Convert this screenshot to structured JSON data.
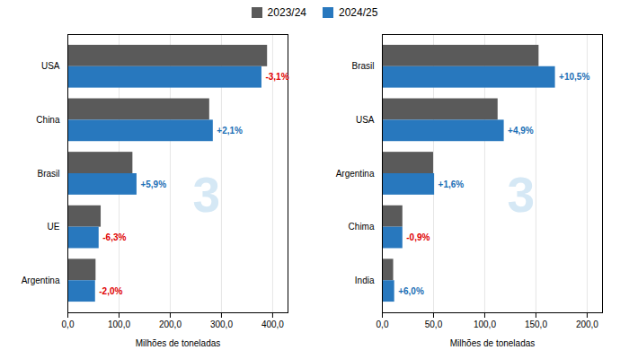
{
  "chart_data": [
    {
      "type": "bar",
      "orientation": "horizontal",
      "categories": [
        "Argentina",
        "UE",
        "Brasil",
        "China",
        "USA"
      ],
      "series": [
        {
          "name": "2023/24",
          "color": "#5a5a5a",
          "values": [
            55,
            65,
            127,
            277,
            390
          ]
        },
        {
          "name": "2024/25",
          "color": "#2878be",
          "values": [
            54,
            61,
            135,
            284,
            379
          ]
        }
      ],
      "xlabel": "Milhões de toneladas",
      "xlim": [
        0,
        430
      ],
      "xticks": [
        {
          "value": 0,
          "label": "0,0"
        },
        {
          "value": 100,
          "label": "100,0"
        },
        {
          "value": 200,
          "label": "200,0"
        },
        {
          "value": 300,
          "label": "300,0"
        },
        {
          "value": 400,
          "label": "400,0"
        }
      ],
      "grid": true,
      "legend": "top",
      "annotations": [
        {
          "text": "3",
          "color": "#d5e8f5"
        },
        {
          "category": "Argentina",
          "series": "2024/25",
          "text": "-2,0%",
          "color": "#e00000"
        },
        {
          "category": "UE",
          "series": "2024/25",
          "text": "-6,3%",
          "color": "#e00000"
        },
        {
          "category": "Brasil",
          "series": "2024/25",
          "text": "+5,9%",
          "color": "#1a6eb5"
        },
        {
          "category": "China",
          "series": "2024/25",
          "text": "+2,1%",
          "color": "#1a6eb5"
        },
        {
          "category": "USA",
          "series": "2024/25",
          "text": "-3,1%",
          "color": "#e00000"
        }
      ]
    },
    {
      "type": "bar",
      "orientation": "horizontal",
      "categories": [
        "India",
        "Chima",
        "Argentina",
        "USA",
        "Brasil"
      ],
      "series": [
        {
          "name": "2023/24",
          "color": "#5a5a5a",
          "values": [
            11,
            20,
            50,
            113,
            153
          ]
        },
        {
          "name": "2024/25",
          "color": "#2878be",
          "values": [
            12,
            20,
            51,
            119,
            169
          ]
        }
      ],
      "xlabel": "Milhões de toneladas",
      "xlim": [
        0,
        215
      ],
      "xticks": [
        {
          "value": 0,
          "label": "0,0"
        },
        {
          "value": 50,
          "label": "50,0"
        },
        {
          "value": 100,
          "label": "100,0"
        },
        {
          "value": 150,
          "label": "150,0"
        },
        {
          "value": 200,
          "label": "200,0"
        }
      ],
      "grid": true,
      "legend": "top",
      "annotations": [
        {
          "text": "3",
          "color": "#d5e8f5"
        },
        {
          "category": "India",
          "series": "2024/25",
          "text": "+6,0%",
          "color": "#1a6eb5"
        },
        {
          "category": "Chima",
          "series": "2024/25",
          "text": "-0,9%",
          "color": "#e00000"
        },
        {
          "category": "Argentina",
          "series": "2024/25",
          "text": "+1,6%",
          "color": "#1a6eb5"
        },
        {
          "category": "USA",
          "series": "2024/25",
          "text": "+4,9%",
          "color": "#1a6eb5"
        },
        {
          "category": "Brasil",
          "series": "2024/25",
          "text": "+10,5%",
          "color": "#1a6eb5"
        }
      ]
    }
  ]
}
